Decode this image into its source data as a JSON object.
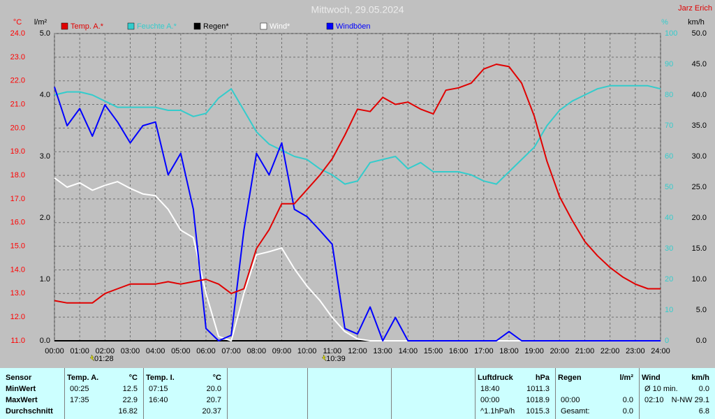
{
  "chart_data": {
    "type": "line",
    "title": "Mittwoch, 29.05.2024",
    "author": "Jarz Erich",
    "x": [
      0,
      0.5,
      1,
      1.5,
      2,
      2.5,
      3,
      3.5,
      4,
      4.5,
      5,
      5.5,
      6,
      6.5,
      7,
      7.5,
      8,
      8.5,
      9,
      9.5,
      10,
      10.5,
      11,
      11.5,
      12,
      12.5,
      13,
      13.5,
      14,
      14.5,
      15,
      15.5,
      16,
      16.5,
      17,
      17.5,
      18,
      18.5,
      19,
      19.5,
      20,
      20.5,
      21,
      21.5,
      22,
      22.5,
      23,
      23.5,
      24
    ],
    "xlim": [
      0,
      24
    ],
    "xticks": [
      {
        "value": 0,
        "label": "00:00"
      },
      {
        "value": 1,
        "label": "01:00"
      },
      {
        "value": 2,
        "label": "02:00"
      },
      {
        "value": 3,
        "label": "03:00"
      },
      {
        "value": 4,
        "label": "04:00"
      },
      {
        "value": 5,
        "label": "05:00"
      },
      {
        "value": 6,
        "label": "06:00"
      },
      {
        "value": 7,
        "label": "07:00"
      },
      {
        "value": 8,
        "label": "08:00"
      },
      {
        "value": 9,
        "label": "09:00"
      },
      {
        "value": 10,
        "label": "10:00"
      },
      {
        "value": 11,
        "label": "11:00"
      },
      {
        "value": 12,
        "label": "12:00"
      },
      {
        "value": 13,
        "label": "13:00"
      },
      {
        "value": 14,
        "label": "14:00"
      },
      {
        "value": 15,
        "label": "15:00"
      },
      {
        "value": 16,
        "label": "16:00"
      },
      {
        "value": 17,
        "label": "17:00"
      },
      {
        "value": 18,
        "label": "18:00"
      },
      {
        "value": 19,
        "label": "19:00"
      },
      {
        "value": 20,
        "label": "20:00"
      },
      {
        "value": 21,
        "label": "21:00"
      },
      {
        "value": 22,
        "label": "22:00"
      },
      {
        "value": 23,
        "label": "23:00"
      },
      {
        "value": 24,
        "label": "24:00"
      }
    ],
    "ylabel": "°C",
    "ylim": [
      11,
      24
    ],
    "yticks": [
      {
        "value": 11,
        "label": "11.0"
      },
      {
        "value": 12,
        "label": "12.0"
      },
      {
        "value": 13,
        "label": "13.0"
      },
      {
        "value": 14,
        "label": "14.0"
      },
      {
        "value": 15,
        "label": "15.0"
      },
      {
        "value": 16,
        "label": "16.0"
      },
      {
        "value": 17,
        "label": "17.0"
      },
      {
        "value": 18,
        "label": "18.0"
      },
      {
        "value": 19,
        "label": "19.0"
      },
      {
        "value": 20,
        "label": "20.0"
      },
      {
        "value": 21,
        "label": "21.0"
      },
      {
        "value": 22,
        "label": "22.0"
      },
      {
        "value": 23,
        "label": "23.0"
      },
      {
        "value": 24,
        "label": "24.0"
      }
    ],
    "ycolor": "#ff0000",
    "y2label": "l/m²",
    "y2lim": [
      0,
      5
    ],
    "y2ticks": [
      {
        "value": 0,
        "label": "0.0"
      },
      {
        "value": 1,
        "label": "1.0"
      },
      {
        "value": 2,
        "label": "2.0"
      },
      {
        "value": 3,
        "label": "3.0"
      },
      {
        "value": 4,
        "label": "4.0"
      },
      {
        "value": 5,
        "label": "5.0"
      }
    ],
    "y2color": "#000000",
    "y3label": "%",
    "y3lim": [
      0,
      100
    ],
    "y3ticks": [
      0,
      10,
      20,
      30,
      40,
      50,
      60,
      70,
      80,
      90,
      100
    ],
    "y3color": "#33cccc",
    "y4label": "km/h",
    "y4lim": [
      0,
      50
    ],
    "y4ticks": [
      {
        "value": 0,
        "label": "0.0"
      },
      {
        "value": 5,
        "label": "5.0"
      },
      {
        "value": 10,
        "label": "10.0"
      },
      {
        "value": 15,
        "label": "15.0"
      },
      {
        "value": 20,
        "label": "20.0"
      },
      {
        "value": 25,
        "label": "25.0"
      },
      {
        "value": 30,
        "label": "30.0"
      },
      {
        "value": 35,
        "label": "35.0"
      },
      {
        "value": 40,
        "label": "40.0"
      },
      {
        "value": 45,
        "label": "45.0"
      },
      {
        "value": 50,
        "label": "50.0"
      }
    ],
    "y4color": "#000000",
    "grid": true,
    "series": [
      {
        "name": "Temp. A.*",
        "color": "#e00000",
        "axis": "y",
        "values": [
          12.7,
          12.6,
          12.6,
          12.6,
          13.0,
          13.2,
          13.4,
          13.4,
          13.4,
          13.5,
          13.4,
          13.5,
          13.6,
          13.4,
          13.0,
          13.2,
          14.9,
          15.7,
          16.8,
          16.8,
          17.4,
          18.0,
          18.7,
          19.7,
          20.8,
          20.7,
          21.3,
          21.0,
          21.1,
          20.8,
          20.6,
          21.6,
          21.7,
          21.9,
          22.5,
          22.7,
          22.6,
          21.9,
          20.5,
          18.6,
          17.1,
          16.1,
          15.2,
          14.6,
          14.1,
          13.7,
          13.4,
          13.2,
          13.2
        ]
      },
      {
        "name": "Feuchte A.*",
        "color": "#33cccc",
        "axis": "y3",
        "values": [
          80,
          81,
          81,
          80,
          78,
          76,
          76,
          76,
          76,
          75,
          75,
          73,
          74,
          79,
          82,
          75,
          68,
          64,
          62,
          60,
          59,
          56,
          54,
          51,
          52,
          58,
          59,
          60,
          56,
          58,
          55,
          55,
          55,
          54,
          52,
          51,
          55,
          59,
          63,
          70,
          75,
          78,
          80,
          82,
          83,
          83,
          83,
          83,
          82
        ]
      },
      {
        "name": "Regen*",
        "color": "#000000",
        "axis": "y2",
        "values": [
          0,
          0,
          0,
          0,
          0,
          0,
          0,
          0,
          0,
          0,
          0,
          0,
          0,
          0,
          0,
          0,
          0,
          0,
          0,
          0,
          0,
          0,
          0,
          0,
          0,
          0,
          0,
          0,
          0,
          0,
          0,
          0,
          0,
          0,
          0,
          0,
          0,
          0,
          0,
          0,
          0,
          0,
          0,
          0,
          0,
          0,
          0,
          0,
          0
        ]
      },
      {
        "name": "Wind*",
        "color": "#ffffff",
        "axis": "y4",
        "values": [
          26.5,
          25.0,
          25.7,
          24.5,
          25.3,
          25.9,
          24.8,
          23.9,
          23.6,
          21.4,
          18.0,
          16.8,
          7.7,
          0.7,
          0,
          7.7,
          14.0,
          14.5,
          15.1,
          11.7,
          8.9,
          6.6,
          3.8,
          1.5,
          0.3,
          0,
          0,
          0,
          0,
          0,
          0,
          0,
          0,
          0,
          0,
          0,
          0,
          0,
          0,
          0,
          0,
          0,
          0,
          0,
          0,
          0,
          0,
          0,
          0
        ]
      },
      {
        "name": "Windböen",
        "color": "#0000ff",
        "axis": "y4",
        "values": [
          41.3,
          35.0,
          37.8,
          33.3,
          38.4,
          35.6,
          32.2,
          35.0,
          35.6,
          27.0,
          30.5,
          21.4,
          2.0,
          0,
          0.9,
          18.0,
          30.5,
          27.0,
          32.2,
          21.4,
          20.2,
          18.0,
          15.7,
          2.0,
          1.1,
          5.5,
          0,
          3.8,
          0,
          0,
          0,
          0,
          0,
          0,
          0,
          0,
          1.5,
          0,
          0,
          0,
          0,
          0,
          0,
          0,
          0,
          0,
          0,
          0,
          0
        ]
      }
    ],
    "markers": [
      {
        "x": 1.4667,
        "label": "01:28"
      },
      {
        "x": 10.65,
        "label": "10:39"
      }
    ]
  },
  "table": {
    "row_labels": [
      "Sensor",
      "MinWert",
      "MaxWert",
      "Durchschnitt"
    ],
    "blocks": [
      {
        "title": "Temp. A.",
        "unit": "°C",
        "min": {
          "time": "00:25",
          "value": "12.5"
        },
        "max": {
          "time": "17:35",
          "value": "22.9"
        },
        "avg": {
          "value": "16.82"
        }
      },
      {
        "title": "Temp. I.",
        "unit": "°C",
        "min": {
          "time": "07:15",
          "value": "20.0"
        },
        "max": {
          "time": "16:40",
          "value": "20.7"
        },
        "avg": {
          "value": "20.37"
        }
      },
      {
        "title": "Luftdruck",
        "unit": "hPa",
        "min": {
          "time": "18:40",
          "value": "1011.3"
        },
        "max": {
          "time": "00:00",
          "value": "1018.9"
        },
        "avg": {
          "time": "^1.1hPa/h",
          "value": "1015.3"
        }
      },
      {
        "title": "Regen",
        "unit": "l/m²",
        "max": {
          "time": "00:00",
          "value": "0.0"
        },
        "avg": {
          "time": "Gesamt:",
          "value": "0.0"
        }
      },
      {
        "title": "Wind",
        "unit": "km/h",
        "min": {
          "time": "Ø 10 min.",
          "value": "0.0"
        },
        "max": {
          "time": "02:10",
          "value": "N-NW 29.1"
        },
        "avg": {
          "value": "6.8"
        }
      }
    ]
  }
}
